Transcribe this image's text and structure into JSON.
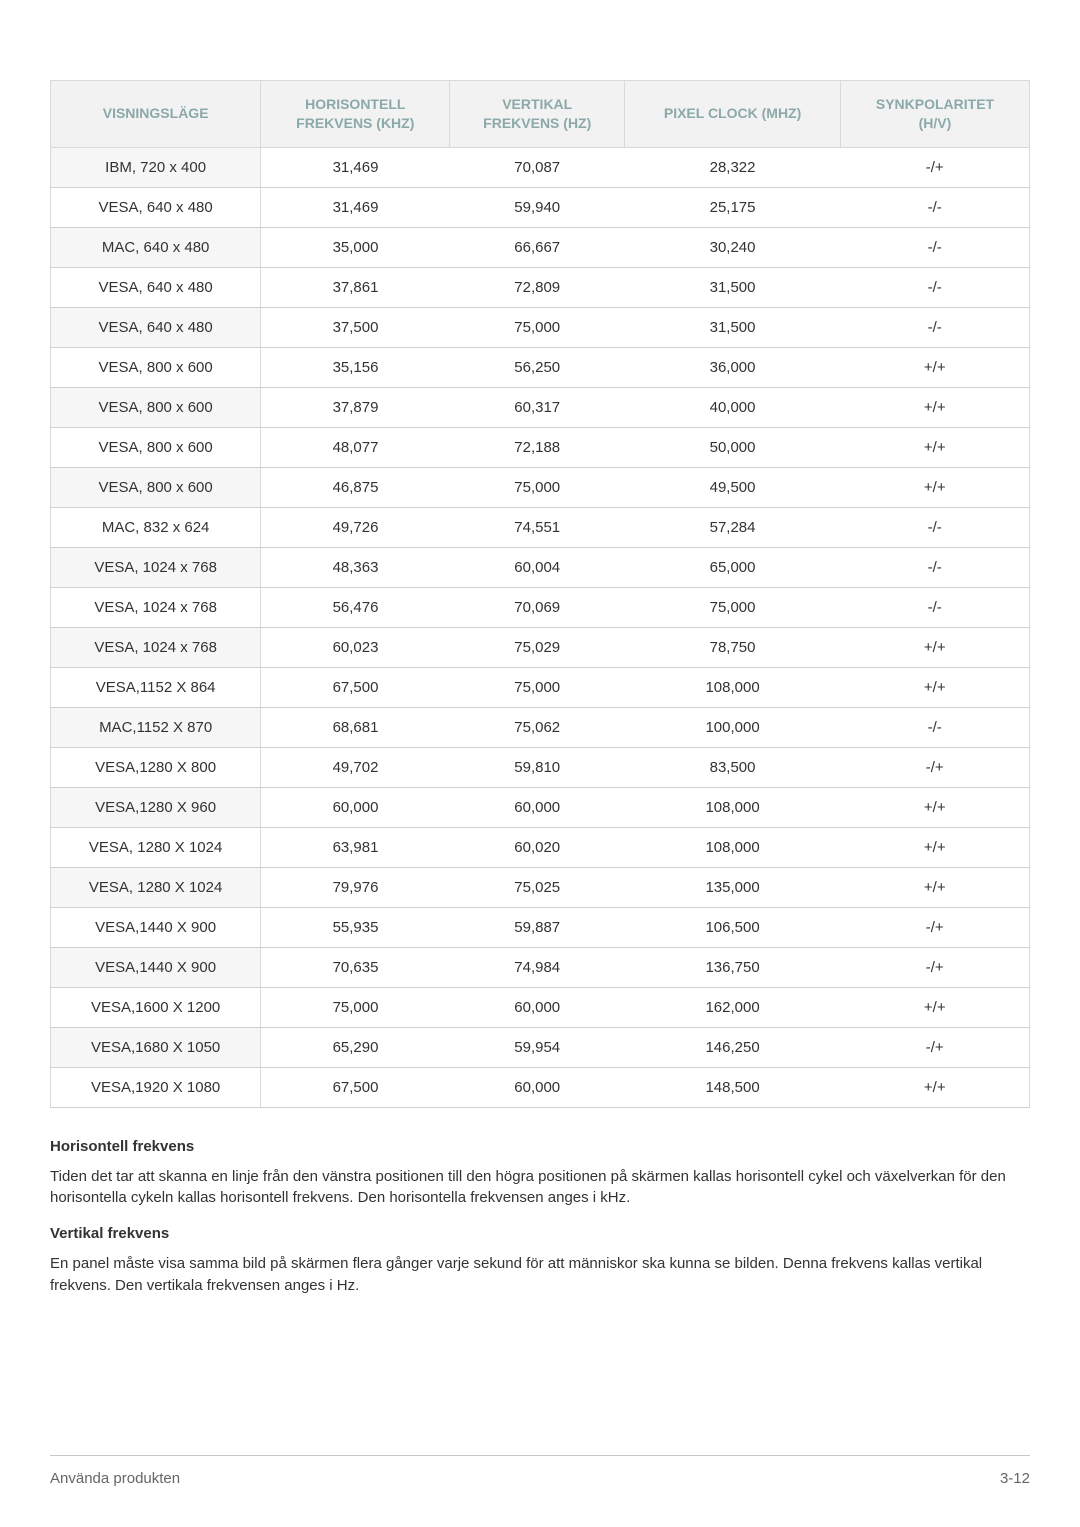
{
  "table": {
    "columns": [
      "VISNINGSLÄGE",
      "HORISONTELL FREKVENS (KHZ)",
      "VERTIKAL FREKVENS (HZ)",
      "PIXEL CLOCK (MHZ)",
      "SYNKPOLARITET (H/V)"
    ],
    "header_color": "#8ca9a9",
    "header_bg": "#f2f2f2",
    "border_color": "#d9d9d9",
    "rows": [
      [
        "IBM, 720 x 400",
        "31,469",
        "70,087",
        "28,322",
        "-/+"
      ],
      [
        "VESA, 640 x 480",
        "31,469",
        "59,940",
        "25,175",
        "-/-"
      ],
      [
        "MAC, 640 x 480",
        "35,000",
        "66,667",
        "30,240",
        "-/-"
      ],
      [
        "VESA, 640 x 480",
        "37,861",
        "72,809",
        "31,500",
        "-/-"
      ],
      [
        "VESA, 640 x 480",
        "37,500",
        "75,000",
        "31,500",
        "-/-"
      ],
      [
        "VESA, 800 x 600",
        "35,156",
        "56,250",
        "36,000",
        "+/+"
      ],
      [
        "VESA, 800 x 600",
        "37,879",
        "60,317",
        "40,000",
        "+/+"
      ],
      [
        "VESA, 800 x 600",
        "48,077",
        "72,188",
        "50,000",
        "+/+"
      ],
      [
        "VESA, 800 x 600",
        "46,875",
        "75,000",
        "49,500",
        "+/+"
      ],
      [
        "MAC, 832 x 624",
        "49,726",
        "74,551",
        "57,284",
        "-/-"
      ],
      [
        "VESA, 1024 x 768",
        "48,363",
        "60,004",
        "65,000",
        "-/-"
      ],
      [
        "VESA, 1024 x 768",
        "56,476",
        "70,069",
        "75,000",
        "-/-"
      ],
      [
        "VESA, 1024 x 768",
        "60,023",
        "75,029",
        "78,750",
        "+/+"
      ],
      [
        "VESA,1152 X 864",
        "67,500",
        "75,000",
        "108,000",
        "+/+"
      ],
      [
        "MAC,1152 X 870",
        "68,681",
        "75,062",
        "100,000",
        "-/-"
      ],
      [
        "VESA,1280 X 800",
        "49,702",
        "59,810",
        "83,500",
        "-/+"
      ],
      [
        "VESA,1280 X 960",
        "60,000",
        "60,000",
        "108,000",
        "+/+"
      ],
      [
        "VESA, 1280 X 1024",
        "63,981",
        "60,020",
        "108,000",
        "+/+"
      ],
      [
        "VESA, 1280 X 1024",
        "79,976",
        "75,025",
        "135,000",
        "+/+"
      ],
      [
        "VESA,1440 X 900",
        "55,935",
        "59,887",
        "106,500",
        "-/+"
      ],
      [
        "VESA,1440 X 900",
        "70,635",
        "74,984",
        "136,750",
        "-/+"
      ],
      [
        "VESA,1600 X 1200",
        "75,000",
        "60,000",
        "162,000",
        "+/+"
      ],
      [
        "VESA,1680 X 1050",
        "65,290",
        "59,954",
        "146,250",
        "-/+"
      ],
      [
        "VESA,1920 X 1080",
        "67,500",
        "60,000",
        "148,500",
        "+/+"
      ]
    ]
  },
  "notes": {
    "h1_title": "Horisontell frekvens",
    "h1_body": "Tiden det tar att skanna en linje från den vänstra positionen till den högra positionen på skärmen kallas horisontell cykel och växelverkan för den horisontella cykeln kallas horisontell frekvens. Den horisontella frekvensen anges i kHz.",
    "h2_title": "Vertikal frekvens",
    "h2_body": "En panel måste visa samma bild på skärmen flera gånger varje sekund för att människor ska kunna se bilden. Denna frekvens kallas vertikal frekvens. Den vertikala frekvensen anges i Hz."
  },
  "footer": {
    "left": "Använda produkten",
    "right": "3-12"
  }
}
